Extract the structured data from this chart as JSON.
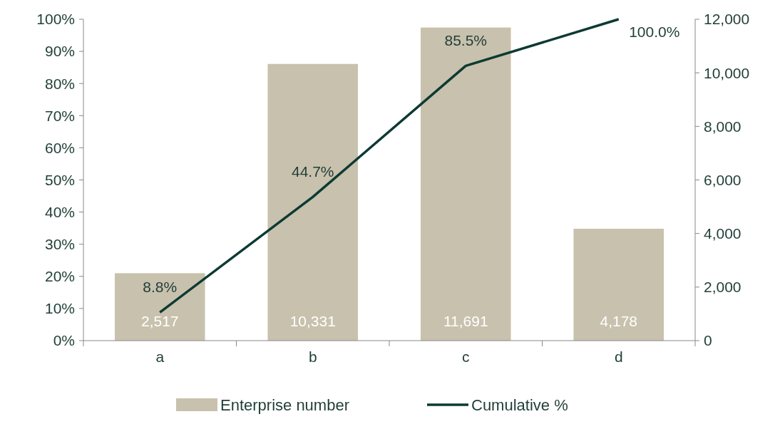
{
  "chart_data": {
    "type": "bar",
    "categories": [
      "a",
      "b",
      "c",
      "d"
    ],
    "series": [
      {
        "name": "Enterprise number",
        "axis": "y2",
        "color": "#c8c1ad",
        "values": [
          2517,
          10331,
          11691,
          4178
        ],
        "value_labels": [
          "2,517",
          "10,331",
          "11,691",
          "4,178"
        ]
      },
      {
        "name": "Cumulative %",
        "type": "line",
        "color": "#0d3a33",
        "values": [
          8.8,
          44.7,
          85.5,
          100
        ],
        "value_labels": [
          "8.8%",
          "44.7%",
          "85.5%",
          "100.0%"
        ]
      }
    ],
    "ylim": [
      0,
      100
    ],
    "yticks": [
      {
        "value": 0,
        "label": "0%"
      },
      {
        "value": 10,
        "label": "10%"
      },
      {
        "value": 20,
        "label": "20%"
      },
      {
        "value": 30,
        "label": "30%"
      },
      {
        "value": 40,
        "label": "40%"
      },
      {
        "value": 50,
        "label": "50%"
      },
      {
        "value": 60,
        "label": "60%"
      },
      {
        "value": 70,
        "label": "70%"
      },
      {
        "value": 80,
        "label": "80%"
      },
      {
        "value": 90,
        "label": "90%"
      },
      {
        "value": 100,
        "label": "100%"
      }
    ],
    "y2lim": [
      0,
      12000
    ],
    "y2ticks": [
      0,
      {
        "value": 2000,
        "label": "2,000"
      },
      {
        "value": 4000,
        "label": "4,000"
      },
      {
        "value": 6000,
        "label": "6,000"
      },
      {
        "value": 8000,
        "label": "8,000"
      },
      {
        "value": 10000,
        "label": "10,000"
      },
      {
        "value": 12000,
        "label": "12,000"
      }
    ],
    "legend": "bottom",
    "grid": false,
    "marker": "none",
    "line_style": "solid"
  }
}
